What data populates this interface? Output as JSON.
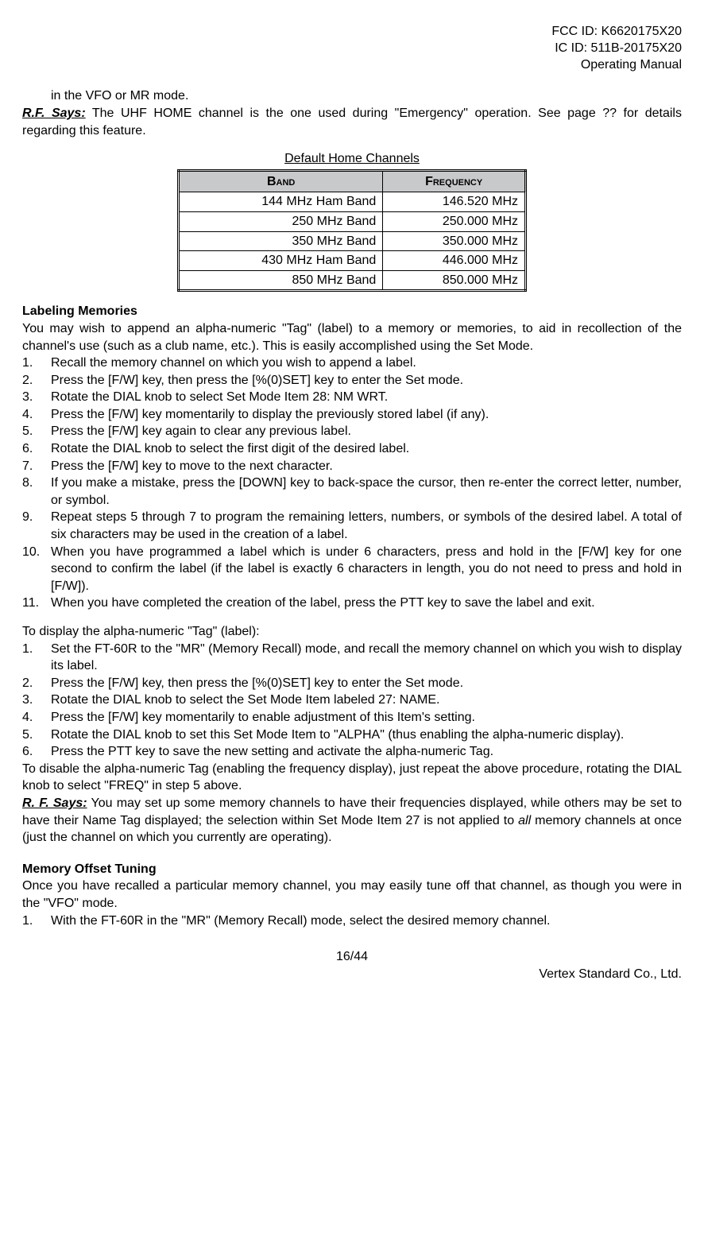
{
  "header": {
    "fcc": "FCC ID: K6620175X20",
    "ic": "IC ID: 511B-20175X20",
    "doc": "Operating Manual"
  },
  "continued_line": "in the VFO or MR mode.",
  "rf_says_label": "R.F. Says:",
  "rf_says_text": " The UHF HOME channel is the one used during \"Emergency\" operation. See page ?? for details regarding this feature.",
  "table": {
    "title": "Default Home Channels",
    "col1": "Band",
    "col2": "Frequency",
    "rows": [
      {
        "band": "144 MHz Ham Band",
        "freq": "146.520 MHz"
      },
      {
        "band": "250 MHz Band",
        "freq": "250.000 MHz"
      },
      {
        "band": "350 MHz Band",
        "freq": "350.000 MHz"
      },
      {
        "band": "430 MHz Ham Band",
        "freq": "446.000 MHz"
      },
      {
        "band": "850 MHz Band",
        "freq": "850.000 MHz"
      }
    ]
  },
  "labeling": {
    "heading": "Labeling Memories",
    "intro": "You may wish to append an alpha-numeric \"Tag\" (label) to a memory or memories, to aid in recollection of the channel's use (such as a club name, etc.). This is easily accomplished using the Set Mode.",
    "steps": [
      "Recall the memory channel on which you wish to append a label.",
      "Press the [F/W] key, then press the [%(0)SET] key to enter the Set mode.",
      "Rotate the DIAL knob to select Set Mode Item 28: NM WRT.",
      "Press the [F/W] key momentarily to display the previously stored label (if any).",
      "Press the [F/W] key again to clear any previous label.",
      "Rotate the DIAL knob to select the first digit of the desired label.",
      "Press the [F/W] key to move to the next character.",
      "If you make a mistake, press the [DOWN] key to back-space the cursor, then re-enter the correct letter, number, or symbol.",
      "Repeat steps 5 through 7 to program the remaining letters, numbers, or symbols of the desired label. A total of six characters may be used in the creation of a label.",
      "When you have programmed a label which is under 6 characters, press and hold in the [F/W] key for one second to confirm the label (if the label is exactly 6 characters in length, you do not need to press and hold in [F/W]).",
      "When you have completed the creation of the label, press the PTT key to save the label and exit."
    ]
  },
  "display": {
    "intro": "To display the alpha-numeric \"Tag\" (label):",
    "steps": [
      "Set the FT-60R to the \"MR\" (Memory Recall) mode, and recall the memory channel on which you wish to display its label.",
      "Press the [F/W] key, then press the [%(0)SET] key to enter the Set mode.",
      "Rotate the DIAL knob to select the Set Mode Item labeled 27: NAME.",
      "Press the [F/W] key momentarily to enable adjustment of this Item's setting.",
      "Rotate the DIAL knob to set this Set Mode Item to \"ALPHA\" (thus enabling the alpha-numeric display).",
      "Press the PTT key to save the new setting and activate the alpha-numeric Tag."
    ],
    "disable_text": "To disable the alpha-numeric Tag (enabling the frequency display), just repeat the above procedure, rotating the DIAL knob to select \"FREQ\" in step 5 above.",
    "rf_label": "R. F. Says:",
    "rf_text_pre": "  You may set up some memory channels to have their frequencies displayed, while others may be set to have their Name Tag displayed; the selection within Set Mode Item 27 is not applied to ",
    "rf_text_italic": "all",
    "rf_text_post": " memory channels at once (just the channel on which you currently are operating)."
  },
  "offset": {
    "heading": "Memory Offset Tuning",
    "intro": "Once you have recalled a particular memory channel, you may easily tune off that channel, as though you were in the \"VFO\" mode.",
    "steps": [
      "With the FT-60R in the \"MR\" (Memory Recall) mode, select the desired memory channel."
    ]
  },
  "footer": {
    "page": "16/44",
    "company": "Vertex Standard Co., Ltd."
  }
}
